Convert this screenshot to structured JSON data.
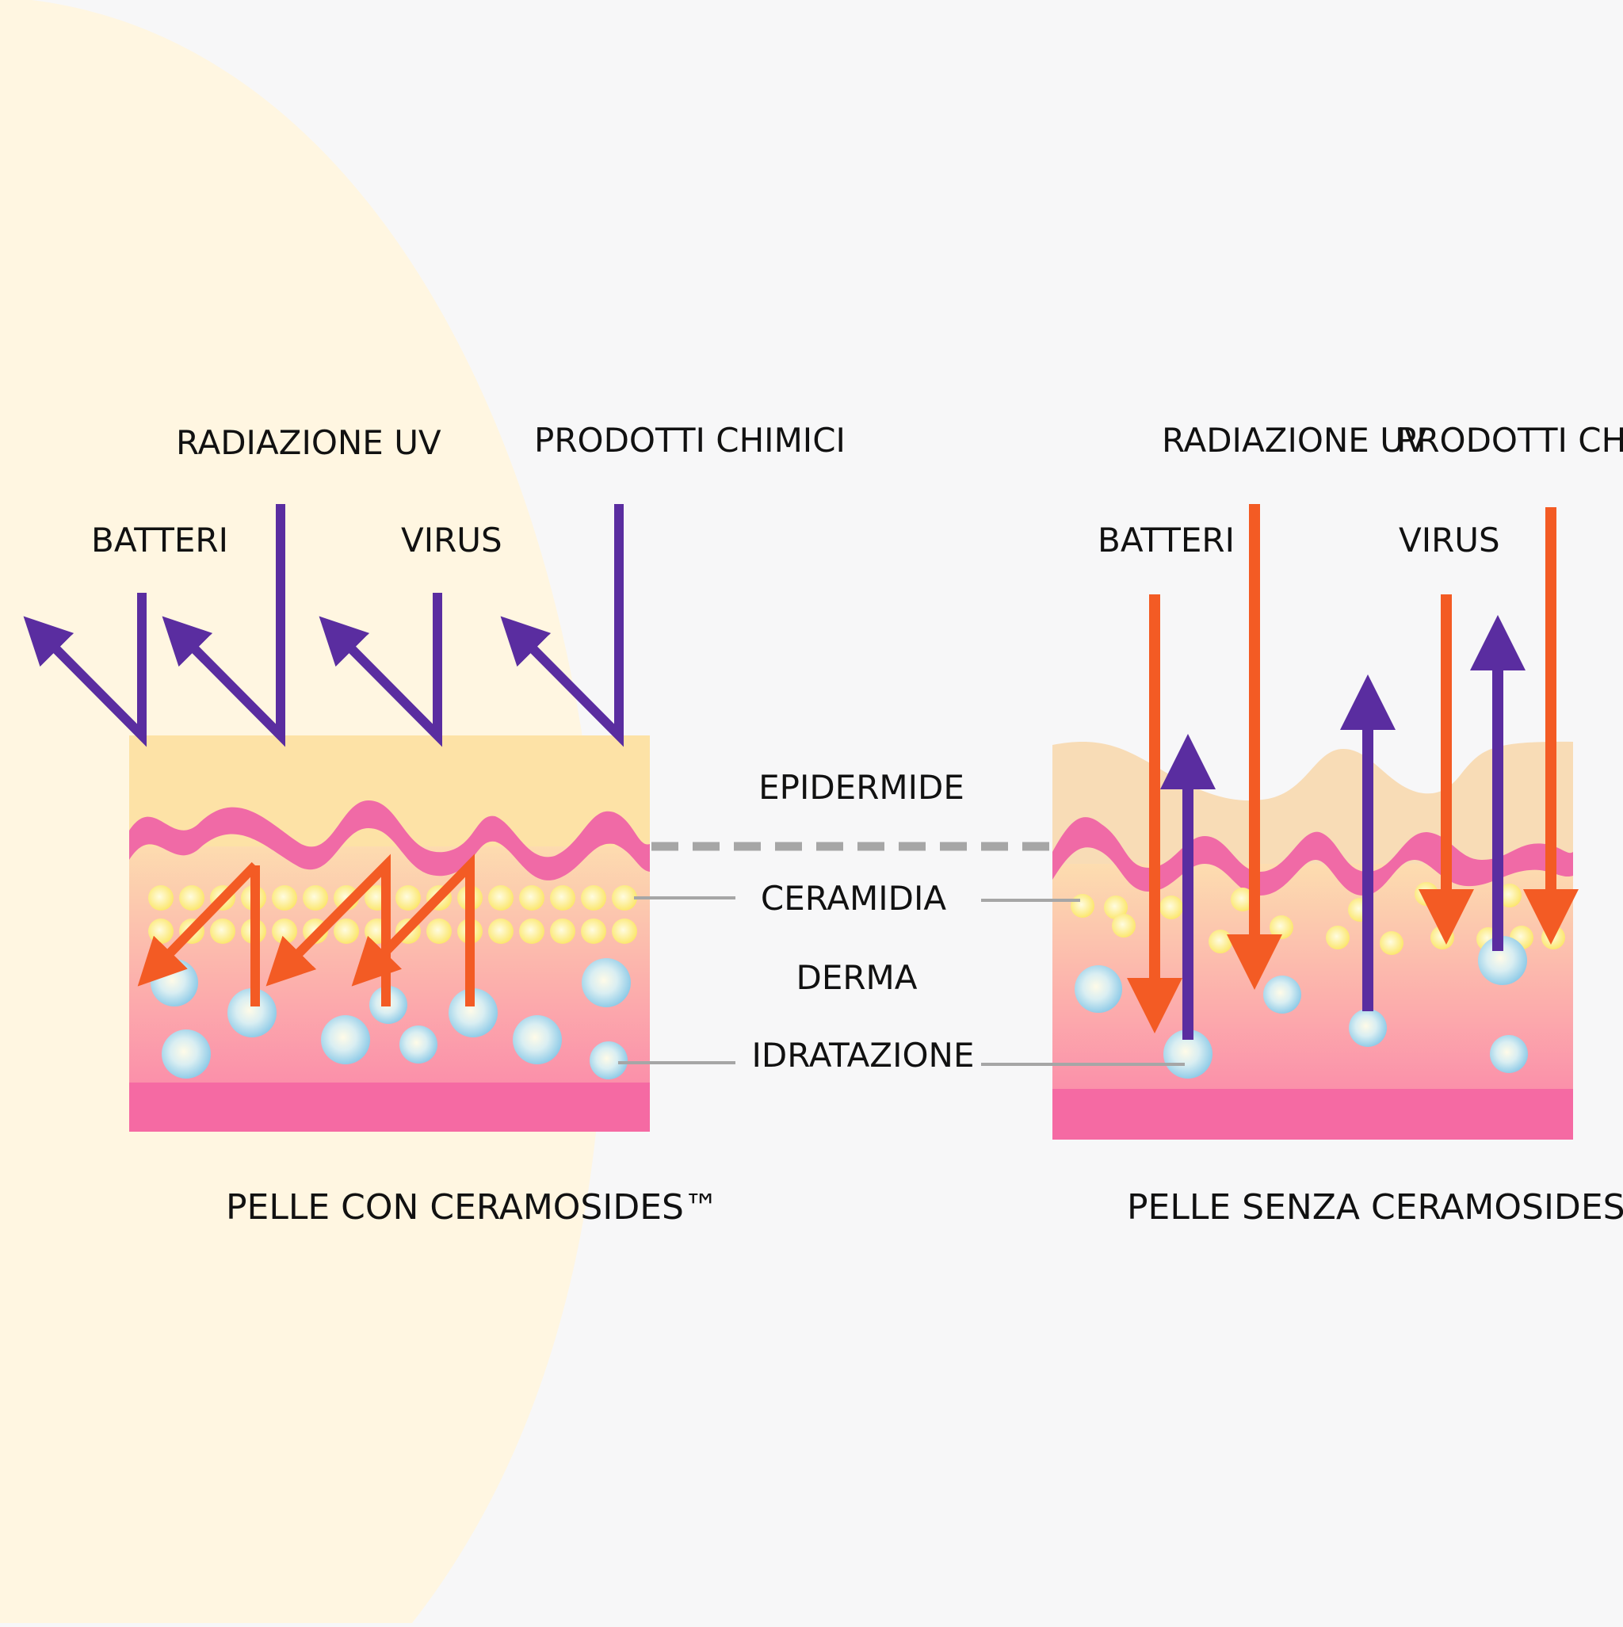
{
  "left_panel": {
    "labels": {
      "uv": "RADIAZIONE UV",
      "chem": "PRODOTTI CHIMICI",
      "bact": "BATTERI",
      "virus": "VIRUS"
    },
    "caption": "PELLE CON CERAMOSIDES™"
  },
  "right_panel": {
    "labels": {
      "uv": "RADIAZIONE UV",
      "chem": "PRODOTTI CHIMICI",
      "bact": "BATTERI",
      "virus": "VIRUS"
    },
    "caption": "PELLE SENZA CERAMOSIDES™"
  },
  "legend": {
    "epidermis": "EPIDERMIDE",
    "ceramide": "CERAMIDIA",
    "dermis": "DERMA",
    "hydration": "IDRATAZIONE"
  },
  "colors": {
    "background": "#f7f7f8",
    "halo": "#fff6e1",
    "epidermis": "#fde2a6",
    "epidermis_damaged": "#f8dcb6",
    "pink_wave": "#f06aa6",
    "dermis_top": "#fde2b4",
    "dermis_bottom": "#fb8fab",
    "base_layer": "#f56aa3",
    "purple_arrow": "#5a2da0",
    "orange_arrow": "#f35b24",
    "lipid": "#fdf07a",
    "water_bubble": "#9fd3ea",
    "connector": "#a6a6a6"
  },
  "icons": [
    "uv-ray-arrow",
    "reflected-arrow",
    "ceramide-lipid",
    "water-bubble"
  ]
}
